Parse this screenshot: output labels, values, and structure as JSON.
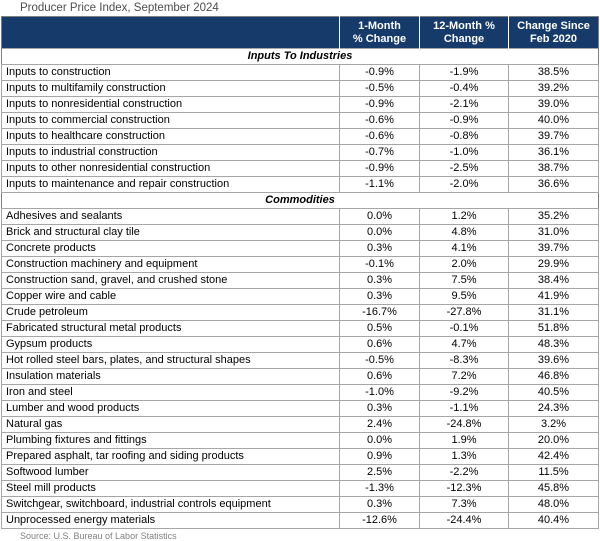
{
  "title": "Producer Price Index, September 2024",
  "source": "Source: U.S. Bureau of Labor Statistics",
  "colors": {
    "header_bg": "#163a69",
    "header_text": "#ffffff",
    "gridline": "#a6a6a6",
    "outer_border": "#7f7f7f",
    "title_text": "#4d4d4d",
    "source_text": "#808080"
  },
  "chart_data": {
    "type": "table",
    "title": "Producer Price Index, September 2024",
    "columns": [
      {
        "line1": "",
        "line2": ""
      },
      {
        "line1": "1-Month",
        "line2": "% Change"
      },
      {
        "line1": "12-Month %",
        "line2": "Change"
      },
      {
        "line1": "Change Since",
        "line2": "Feb 2020"
      }
    ],
    "sections": [
      {
        "name": "Inputs To Industries",
        "rows": [
          [
            "Inputs to construction",
            "-0.9%",
            "-1.9%",
            "38.5%"
          ],
          [
            "Inputs to multifamily construction",
            "-0.5%",
            "-0.4%",
            "39.2%"
          ],
          [
            "Inputs to nonresidential construction",
            "-0.9%",
            "-2.1%",
            "39.0%"
          ],
          [
            "Inputs to commercial construction",
            "-0.6%",
            "-0.9%",
            "40.0%"
          ],
          [
            "Inputs to healthcare construction",
            "-0.6%",
            "-0.8%",
            "39.7%"
          ],
          [
            "Inputs to industrial construction",
            "-0.7%",
            "-1.0%",
            "36.1%"
          ],
          [
            "Inputs to other nonresidential construction",
            "-0.9%",
            "-2.5%",
            "38.7%"
          ],
          [
            "Inputs to maintenance and repair construction",
            "-1.1%",
            "-2.0%",
            "36.6%"
          ]
        ]
      },
      {
        "name": "Commodities",
        "rows": [
          [
            "Adhesives and sealants",
            "0.0%",
            "1.2%",
            "35.2%"
          ],
          [
            "Brick and structural clay tile",
            "0.0%",
            "4.8%",
            "31.0%"
          ],
          [
            "Concrete products",
            "0.3%",
            "4.1%",
            "39.7%"
          ],
          [
            "Construction machinery and equipment",
            "-0.1%",
            "2.0%",
            "29.9%"
          ],
          [
            "Construction sand, gravel, and crushed stone",
            "0.3%",
            "7.5%",
            "38.4%"
          ],
          [
            "Copper wire and cable",
            "0.3%",
            "9.5%",
            "41.9%"
          ],
          [
            "Crude petroleum",
            "-16.7%",
            "-27.8%",
            "31.1%"
          ],
          [
            "Fabricated structural metal products",
            "0.5%",
            "-0.1%",
            "51.8%"
          ],
          [
            "Gypsum products",
            "0.6%",
            "4.7%",
            "48.3%"
          ],
          [
            "Hot rolled steel bars, plates, and structural shapes",
            "-0.5%",
            "-8.3%",
            "39.6%"
          ],
          [
            "Insulation materials",
            "0.6%",
            "7.2%",
            "46.8%"
          ],
          [
            "Iron and steel",
            "-1.0%",
            "-9.2%",
            "40.5%"
          ],
          [
            "Lumber and wood products",
            "0.3%",
            "-1.1%",
            "24.3%"
          ],
          [
            "Natural gas",
            "2.4%",
            "-24.8%",
            "3.2%"
          ],
          [
            "Plumbing fixtures and fittings",
            "0.0%",
            "1.9%",
            "20.0%"
          ],
          [
            "Prepared asphalt, tar roofing and siding products",
            "0.9%",
            "1.3%",
            "42.4%"
          ],
          [
            "Softwood lumber",
            "2.5%",
            "-2.2%",
            "11.5%"
          ],
          [
            "Steel mill products",
            "-1.3%",
            "-12.3%",
            "45.8%"
          ],
          [
            "Switchgear, switchboard, industrial controls equipment",
            "0.3%",
            "7.3%",
            "48.0%"
          ],
          [
            "Unprocessed energy materials",
            "-12.6%",
            "-24.4%",
            "40.4%"
          ]
        ]
      }
    ]
  }
}
